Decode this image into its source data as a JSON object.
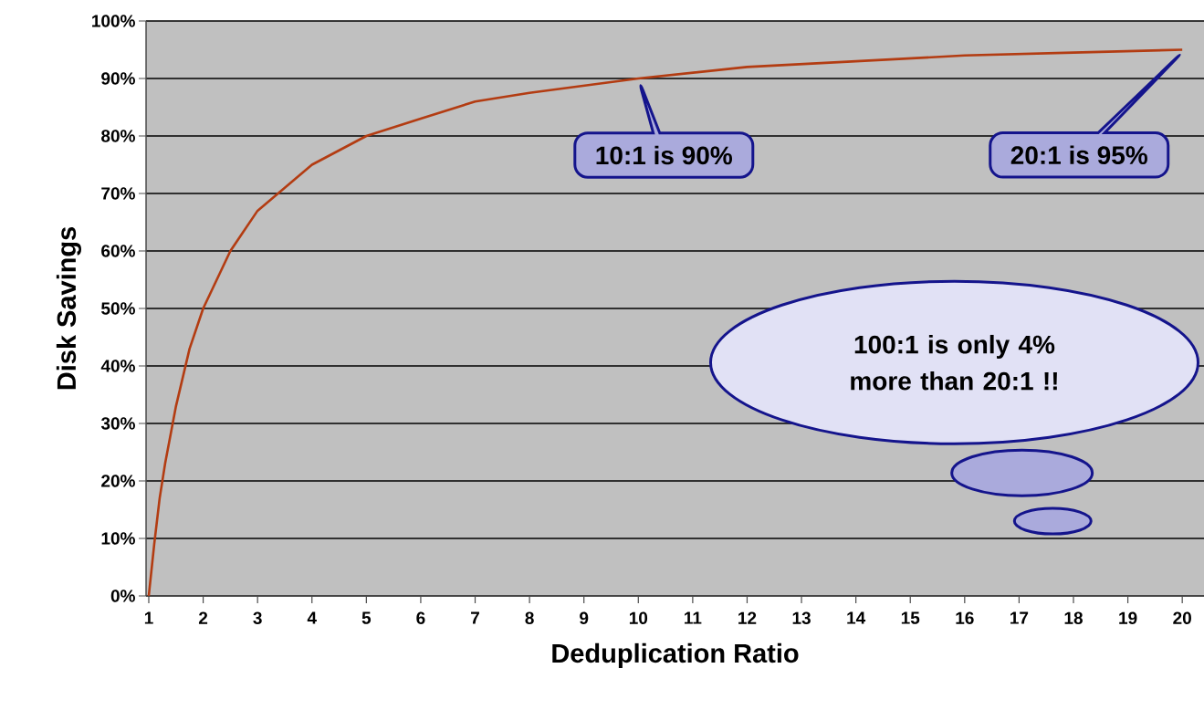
{
  "chart_data": {
    "type": "line",
    "xlabel": "Deduplication Ratio",
    "ylabel": "Disk Savings",
    "x": [
      1,
      1.1,
      1.2,
      1.3,
      1.5,
      1.75,
      2,
      2.5,
      3,
      3.5,
      4,
      5,
      6,
      7,
      8,
      10,
      12,
      14,
      16,
      18,
      20
    ],
    "series": [
      {
        "color": "#b33c12",
        "values": [
          0,
          9,
          17,
          23,
          33,
          43,
          50,
          60,
          67,
          71,
          75,
          80,
          83,
          86,
          87.5,
          90,
          92,
          93,
          94,
          94.5,
          95
        ]
      }
    ],
    "xlim": [
      0.95,
      20.4
    ],
    "xticks": [
      1,
      2,
      3,
      4,
      5,
      6,
      7,
      8,
      9,
      10,
      11,
      12,
      13,
      14,
      15,
      16,
      17,
      18,
      19,
      20
    ],
    "ylim": [
      0,
      100
    ],
    "yticks": [
      {
        "value": 0,
        "label": "0%"
      },
      {
        "value": 10,
        "label": "10%"
      },
      {
        "value": 20,
        "label": "20%"
      },
      {
        "value": 30,
        "label": "30%"
      },
      {
        "value": 40,
        "label": "40%"
      },
      {
        "value": 50,
        "label": "50%"
      },
      {
        "value": 60,
        "label": "60%"
      },
      {
        "value": 70,
        "label": "70%"
      },
      {
        "value": 80,
        "label": "80%"
      },
      {
        "value": 90,
        "label": "90%"
      },
      {
        "value": 100,
        "label": "100%"
      }
    ],
    "grid": "y",
    "marker": "none",
    "line_style": "solid",
    "annotations": [
      {
        "text": "10:1 is 90%",
        "x": 10,
        "y": 90
      },
      "20:1 is 95%",
      "100:1 is only 4% more than 20:1 !!"
    ]
  }
}
